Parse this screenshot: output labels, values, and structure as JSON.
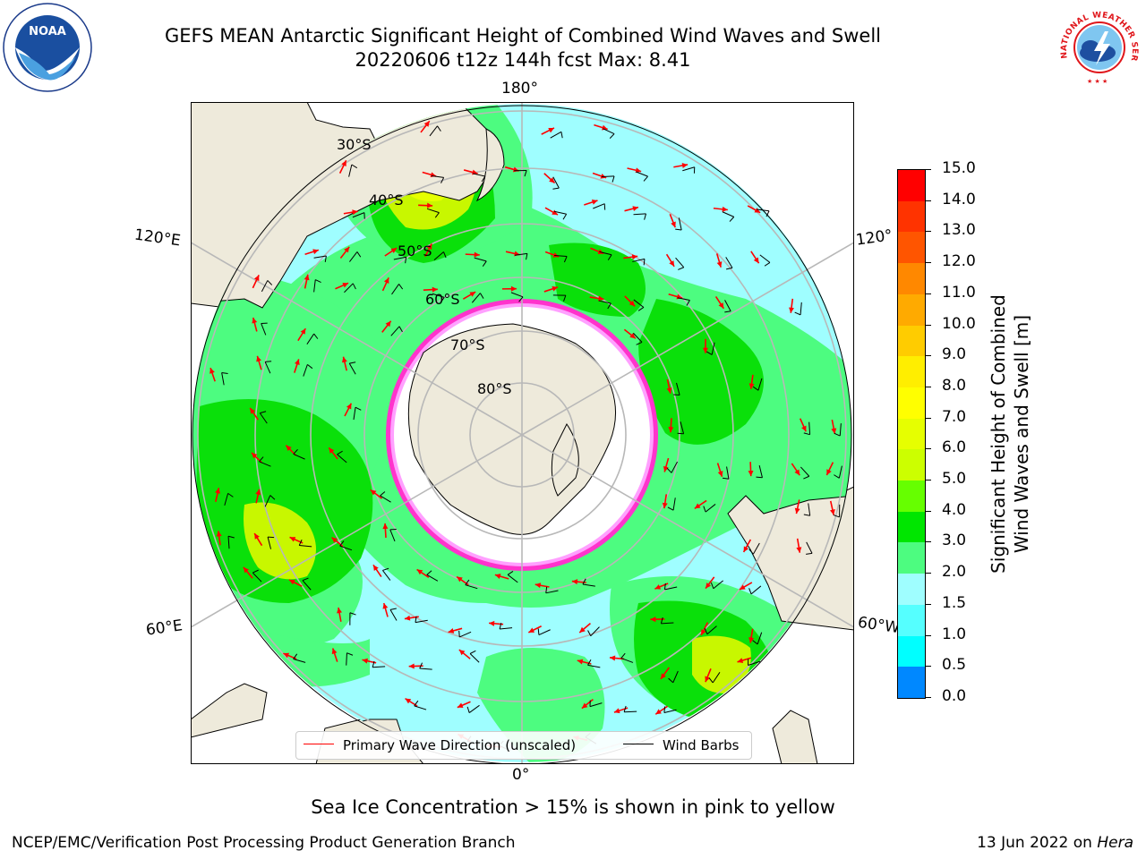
{
  "header": {
    "title_line1": "GEFS MEAN Antarctic Significant Height of Combined Wind Waves and Swell",
    "title_line2": "20220606 t12z 144h fcst   Max: 8.41"
  },
  "logos": {
    "left": "NOAA",
    "left_ring": "NATIONAL OCEANIC AND ATMOSPHERIC ADMINISTRATION · U.S. DEPARTMENT OF COMMERCE",
    "right_ring": "NATIONAL WEATHER SERVICE"
  },
  "map": {
    "lon_labels": {
      "top": "180°",
      "bottom": "0°",
      "left_upper": "120°E",
      "left_lower": "60°E",
      "right_upper": "120°",
      "right_lower": "60°W"
    },
    "lat_labels": [
      "30°S",
      "40°S",
      "50°S",
      "60°S",
      "70°S",
      "80°S"
    ],
    "colors": {
      "ocean_low": "#9ffeff",
      "ocean_mid": "#4dfc80",
      "ocean_high": "#0ae00a",
      "peak": "#c8f700",
      "land": "#eeeadb",
      "ice": "#ffffff",
      "ice_edge": "#ff33cc",
      "arrow": "#ff0000",
      "barb": "#000000"
    }
  },
  "colorbar": {
    "label": "Significant Height of Combined\nWind Waves and Swell [m]",
    "label_line1": "Significant Height of Combined",
    "label_line2": "Wind Waves and Swell [m]",
    "ticks": [
      "15.0",
      "14.0",
      "13.0",
      "12.0",
      "11.0",
      "10.0",
      "9.0",
      "8.0",
      "7.0",
      "6.0",
      "5.0",
      "4.0",
      "3.0",
      "2.0",
      "1.5",
      "1.0",
      "0.5",
      "0.0"
    ],
    "colors": [
      "#ff0000",
      "#ff3300",
      "#ff5500",
      "#ff8800",
      "#ffaa00",
      "#ffcc00",
      "#ffee00",
      "#ffff00",
      "#e6ff00",
      "#ccff00",
      "#66ff00",
      "#00e600",
      "#4dfc80",
      "#9ffeff",
      "#55ffff",
      "#00ffff",
      "#0088ff",
      "#0000ff"
    ]
  },
  "legend": {
    "wave_label": "Primary Wave Direction (unscaled)",
    "barb_label": "Wind Barbs"
  },
  "subtitle": "Sea Ice Concentration > 15% is shown in pink to yellow",
  "footer": {
    "left": "NCEP/EMC/Verification Post Processing Product Generation Branch",
    "date": "13 Jun 2022 on ",
    "machine": "Hera"
  }
}
